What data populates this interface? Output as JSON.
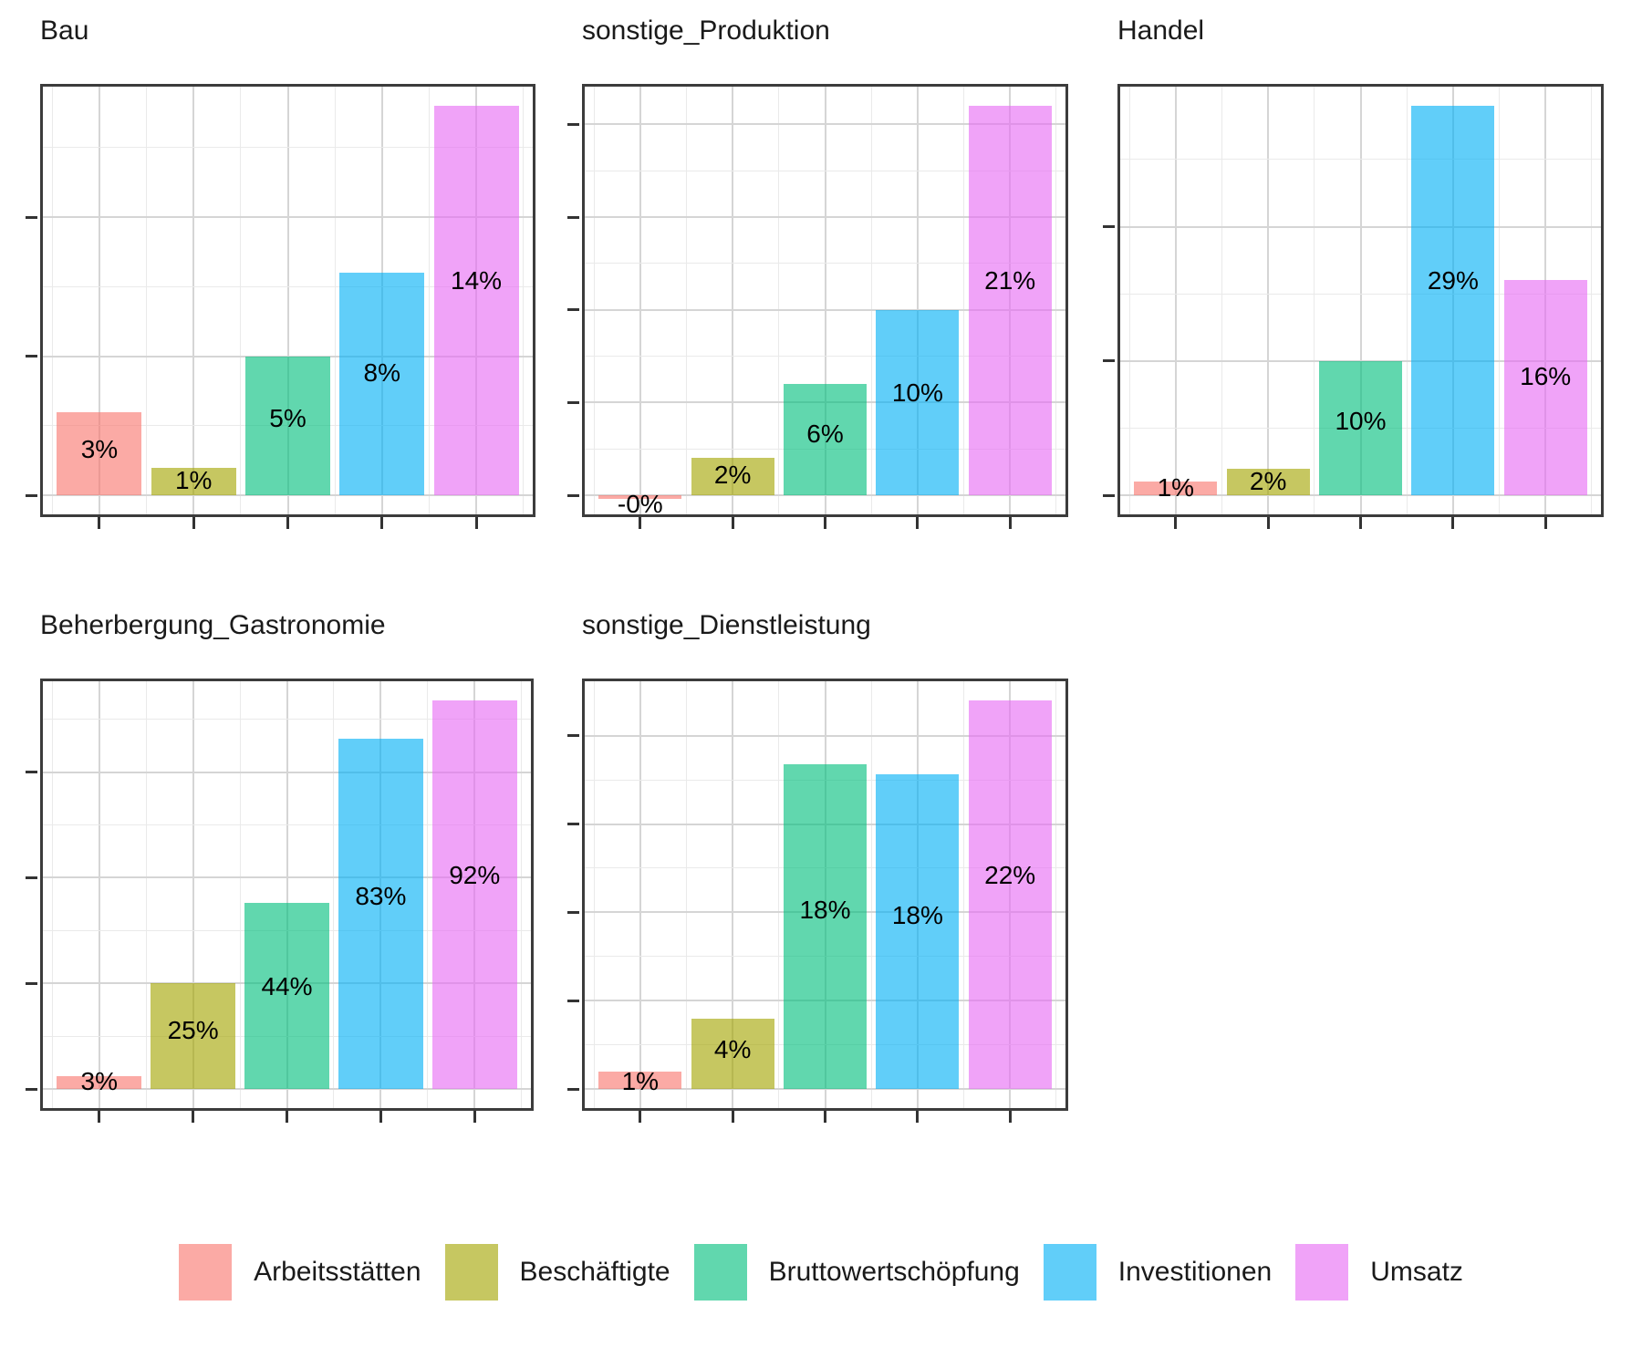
{
  "chart_data": {
    "type": "bar",
    "faceted": true,
    "unit": "percent",
    "y_tick_labels_shown": false,
    "x_tick_labels_shown": false,
    "grid": "on",
    "series_names": [
      "Arbeitsstätten",
      "Beschäftigte",
      "Bruttowertschöpfung",
      "Investitionen",
      "Umsatz"
    ],
    "base_colors": [
      "#F8766D",
      "#A3A500",
      "#00BF7D",
      "#00B0F6",
      "#E76BF3"
    ],
    "fill_alpha": 0.62,
    "facets": [
      {
        "title": "Bau",
        "values": [
          3,
          1,
          5,
          8,
          14
        ],
        "labels": [
          "3%",
          "1%",
          "5%",
          "8%",
          "14%"
        ],
        "y_major_step": 5,
        "ylim": [
          0,
          14.7
        ]
      },
      {
        "title": "sonstige_Produktion",
        "values": [
          -0.2,
          2,
          6,
          10,
          21
        ],
        "labels": [
          "-0%",
          "2%",
          "6%",
          "10%",
          "21%"
        ],
        "y_major_step": 5,
        "ylim": [
          -1,
          22
        ]
      },
      {
        "title": "Handel",
        "values": [
          1,
          2,
          10,
          29,
          16
        ],
        "labels": [
          "1%",
          "2%",
          "10%",
          "29%",
          "16%"
        ],
        "y_major_step": 10,
        "ylim": [
          -1.5,
          30.5
        ]
      },
      {
        "title": "Beherbergung_Gastronomie",
        "values": [
          3,
          25,
          44,
          83,
          92
        ],
        "labels": [
          "3%",
          "25%",
          "44%",
          "83%",
          "92%"
        ],
        "y_major_step": 25,
        "ylim": [
          -4.6,
          96.6
        ]
      },
      {
        "title": "sonstige_Dienstleistung",
        "values": [
          1,
          4,
          18.4,
          17.8,
          22
        ],
        "labels": [
          "1%",
          "4%",
          "18%",
          "18%",
          "22%"
        ],
        "y_major_step": 5,
        "ylim": [
          -1.1,
          23.1
        ]
      }
    ],
    "legend": {
      "position": "bottom",
      "entries": [
        "Arbeitsstätten",
        "Beschäftigte",
        "Bruttowertschöpfung",
        "Investitionen",
        "Umsatz"
      ]
    }
  },
  "style": {
    "panel_border": "#3c3c3c",
    "grid_major": "#d5d5d5",
    "grid_minor": "#eaeaea",
    "tick_color": "#333333",
    "title_color": "#1a1a1a",
    "bar_label_color": "#000000",
    "background": "#ffffff"
  }
}
